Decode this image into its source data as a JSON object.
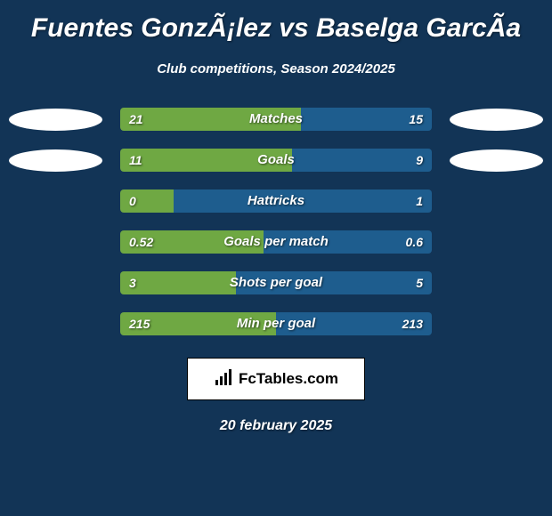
{
  "title": "Fuentes GonzÃ¡lez vs Baselga GarcÃ­a",
  "subtitle": "Club competitions, Season 2024/2025",
  "footer_brand": "FcTables.com",
  "footer_date": "20 february 2025",
  "colors": {
    "background": "#123456",
    "bar_left": "#6fa843",
    "bar_right": "#1e5d8e",
    "ellipse": "#ffffff",
    "text": "#ffffff",
    "badge_bg": "#ffffff",
    "badge_text": "#000000"
  },
  "stats": [
    {
      "label": "Matches",
      "left_val": "21",
      "right_val": "15",
      "left_pct": 58,
      "right_pct": 42,
      "show_ellipses": true
    },
    {
      "label": "Goals",
      "left_val": "11",
      "right_val": "9",
      "left_pct": 55,
      "right_pct": 45,
      "show_ellipses": true
    },
    {
      "label": "Hattricks",
      "left_val": "0",
      "right_val": "1",
      "left_pct": 17,
      "right_pct": 83,
      "show_ellipses": false
    },
    {
      "label": "Goals per match",
      "left_val": "0.52",
      "right_val": "0.6",
      "left_pct": 46,
      "right_pct": 54,
      "show_ellipses": false
    },
    {
      "label": "Shots per goal",
      "left_val": "3",
      "right_val": "5",
      "left_pct": 37,
      "right_pct": 63,
      "show_ellipses": false
    },
    {
      "label": "Min per goal",
      "left_val": "215",
      "right_val": "213",
      "left_pct": 50,
      "right_pct": 50,
      "show_ellipses": false
    }
  ]
}
